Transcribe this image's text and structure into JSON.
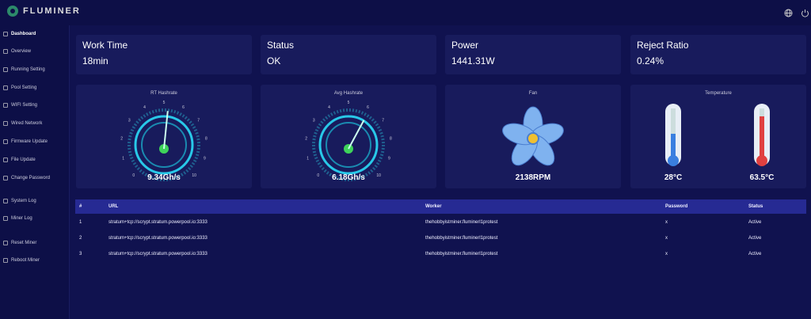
{
  "header": {
    "logo": "FLUMINER"
  },
  "sidebar": {
    "items": [
      "Dashboard",
      "Overview",
      "Running Setting",
      "Pool Setting",
      "WIFI Setting",
      "Wired Network",
      "Firmware Update",
      "File Update",
      "Change Password",
      "System Log",
      "Miner Log",
      "Reset Miner",
      "Reboot Miner"
    ],
    "active": 0
  },
  "stats": [
    {
      "label": "Work Time",
      "value": "18min"
    },
    {
      "label": "Status",
      "value": "OK"
    },
    {
      "label": "Power",
      "value": "1441.31W"
    },
    {
      "label": "Reject Ratio",
      "value": "0.24%"
    }
  ],
  "gauges": {
    "scale": [
      "0",
      "1",
      "2",
      "3",
      "4",
      "5",
      "6",
      "7",
      "8",
      "9",
      "10"
    ],
    "rt": {
      "title": "RT Hashrate",
      "value": "9.34Gh/s"
    },
    "avg": {
      "title": "Avg Hashrate",
      "value": "6.18Gh/s"
    },
    "fan": {
      "title": "Fan",
      "value": "2138RPM"
    },
    "temperature": {
      "title": "Temperature",
      "values": [
        "28°C",
        "63.5°C"
      ]
    }
  },
  "table": {
    "headers": [
      "#",
      "URL",
      "Worker",
      "Password",
      "Status"
    ],
    "rows": [
      [
        "1",
        "stratum+tcp://scrypt.stratum.powerpool.io:3333",
        "thehobbyistminer.fluminerl1protest",
        "x",
        "Active"
      ],
      [
        "2",
        "stratum+tcp://scrypt.stratum.powerpool.io:3333",
        "thehobbyistminer.fluminerl1protest",
        "x",
        "Active"
      ],
      [
        "3",
        "stratum+tcp://scrypt.stratum.powerpool.io:3333",
        "thehobbyistminer.fluminerl1protest",
        "x",
        "Active"
      ]
    ]
  }
}
